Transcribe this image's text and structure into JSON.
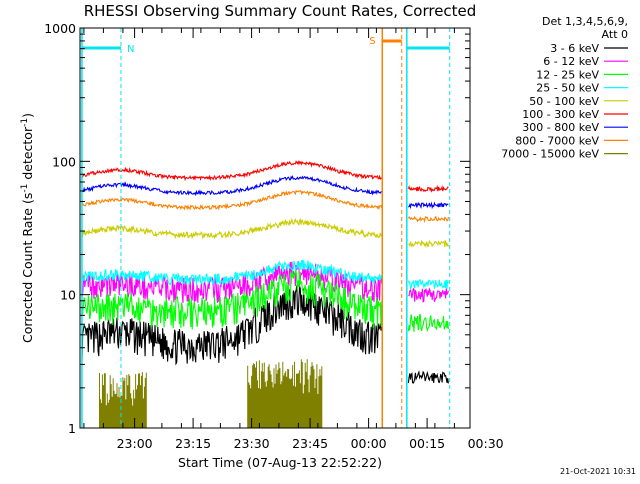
{
  "chart_data": {
    "type": "line",
    "title": "RHESSI Observing Summary Count Rates, Corrected",
    "xlabel": "Start Time (07-Aug-13 22:52:22)",
    "ylabel_parts": {
      "main": "Corrected Count Rate (s",
      "sup1": "-1",
      "mid": " detector",
      "sup2": "-1",
      "end": ")"
    },
    "yscale": "log",
    "ylim": [
      1,
      1000
    ],
    "xlim_min": [
      -6,
      94
    ],
    "y_ticks": [
      {
        "value": 1,
        "label": "1"
      },
      {
        "value": 10,
        "label": "10"
      },
      {
        "value": 100,
        "label": "100"
      },
      {
        "value": 1000,
        "label": "1000"
      }
    ],
    "x_ticks": [
      {
        "value": 8,
        "label": "23:00"
      },
      {
        "value": 23,
        "label": "23:15"
      },
      {
        "value": 38,
        "label": "23:30"
      },
      {
        "value": 53,
        "label": "23:45"
      },
      {
        "value": 68,
        "label": "00:00"
      },
      {
        "value": 83,
        "label": "00:15"
      },
      {
        "value": 98,
        "label": "00:30"
      }
    ],
    "legend_header": [
      "Det 1,3,4,5,6,9,",
      "Att 0"
    ],
    "series": [
      {
        "name": "3 - 6 keV",
        "color": "#000000"
      },
      {
        "name": "6 - 12 keV",
        "color": "#ff00ff"
      },
      {
        "name": "12 - 25 keV",
        "color": "#00ff00"
      },
      {
        "name": "25 - 50 keV",
        "color": "#00ffff"
      },
      {
        "name": "50 - 100 keV",
        "color": "#cccc00"
      },
      {
        "name": "100 - 300 keV",
        "color": "#ff0000"
      },
      {
        "name": "300 - 800 keV",
        "color": "#0000ff"
      },
      {
        "name": "800 - 7000 keV",
        "color": "#ff8000"
      },
      {
        "name": "7000 - 15000 keV",
        "color": "#808000"
      }
    ],
    "night_label": "N",
    "saa_label": "S",
    "night_interval": [
      -5.5,
      4.5
    ],
    "saa_interval": [
      71.5,
      76.5
    ],
    "night2_interval": [
      77.8,
      88.8
    ],
    "gap": [
      71.5,
      78.2
    ],
    "markers": {
      "night_start": -5.5,
      "night_end": 4.5,
      "saa_start": 71.5,
      "saa_end": 76.5,
      "night2_start": 77.8,
      "night2_end": 88.8
    }
  },
  "footer": {
    "timestamp": "21-Oct-2021 10:31"
  }
}
